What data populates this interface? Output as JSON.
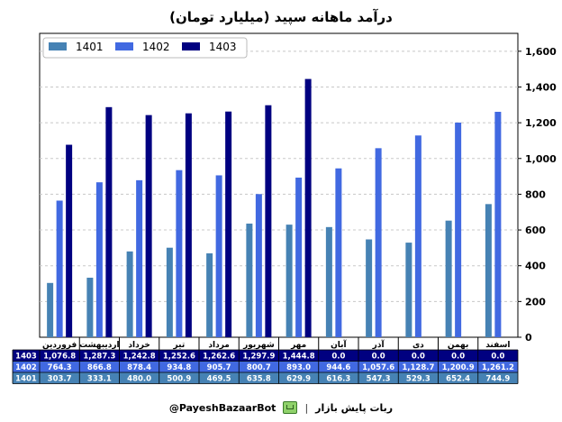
{
  "chart_data": {
    "type": "bar",
    "title": "درآمد ماهانه سپید (میلیارد تومان)",
    "categories": [
      "فروردین",
      "اردیبهشت",
      "خرداد",
      "تیر",
      "مرداد",
      "شهریور",
      "مهر",
      "آبان",
      "آذر",
      "دی",
      "بهمن",
      "اسفند"
    ],
    "series": [
      {
        "name": "1401",
        "color": "#4682b4",
        "values": [
          303.7,
          333.1,
          480.0,
          500.9,
          469.5,
          635.8,
          629.9,
          616.3,
          547.3,
          529.3,
          652.4,
          744.9
        ],
        "labels": [
          "303.7",
          "333.1",
          "480.0",
          "500.9",
          "469.5",
          "635.8",
          "629.9",
          "616.3",
          "547.3",
          "529.3",
          "652.4",
          "744.9"
        ]
      },
      {
        "name": "1402",
        "color": "#4169e1",
        "values": [
          764.3,
          866.8,
          878.4,
          934.8,
          905.7,
          800.7,
          893.0,
          944.6,
          1057.6,
          1128.7,
          1200.9,
          1261.2
        ],
        "labels": [
          "764.3",
          "866.8",
          "878.4",
          "934.8",
          "905.7",
          "800.7",
          "893.0",
          "944.6",
          "1,057.6",
          "1,128.7",
          "1,200.9",
          "1,261.2"
        ]
      },
      {
        "name": "1403",
        "color": "#000080",
        "values": [
          1076.8,
          1287.3,
          1242.8,
          1252.6,
          1262.6,
          1297.9,
          1444.8,
          0.0,
          0.0,
          0.0,
          0.0,
          0.0
        ],
        "labels": [
          "1,076.8",
          "1,287.3",
          "1,242.8",
          "1,252.6",
          "1,262.6",
          "1,297.9",
          "1,444.8",
          "0.0",
          "0.0",
          "0.0",
          "0.0",
          "0.0"
        ]
      }
    ],
    "table_row_order": [
      "1403",
      "1402",
      "1401"
    ],
    "y_ticks": [
      "0",
      "200",
      "400",
      "600",
      "800",
      "1,000",
      "1,200",
      "1,400",
      "1,600"
    ],
    "ylim": [
      0,
      1700
    ],
    "y_axis_side": "right",
    "grid": "horizontal dashed",
    "legend": "top-left"
  },
  "footer": {
    "handle": "@PayeshBazaarBot",
    "separator": "|",
    "bot_name": "ربات پایش بازار",
    "icon": "bot-monitor-icon"
  }
}
